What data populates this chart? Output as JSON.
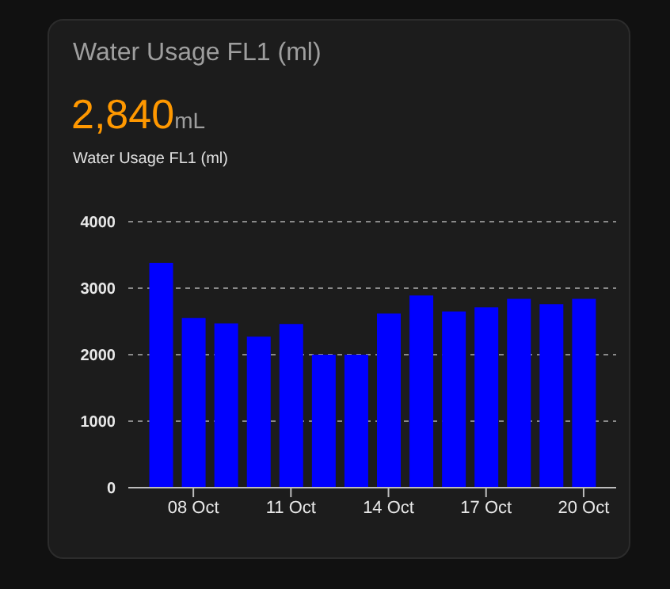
{
  "chart_data": {
    "type": "bar",
    "title": "Water Usage FL1 (ml)",
    "annotations": [
      "2,840",
      "mL"
    ],
    "subtitle": "Water Usage FL1 (ml)",
    "x": [
      "--10-07",
      "--10-08",
      "--10-09",
      "--10-10",
      "--10-11",
      "--10-12",
      "--10-13",
      "--10-14",
      "--10-15",
      "--10-16",
      "--10-17",
      "--10-18",
      "--10-19",
      "--10-20"
    ],
    "values": [
      3380,
      2550,
      2470,
      2270,
      2460,
      2000,
      2000,
      2620,
      2890,
      2650,
      2710,
      2840,
      2760,
      2840
    ],
    "color": "#0000ff",
    "xlim": [
      "--10-06",
      "--10-21"
    ],
    "xticks": [
      {
        "value": "--10-08",
        "label": "08 Oct"
      },
      {
        "value": "--10-11",
        "label": "11 Oct"
      },
      {
        "value": "--10-14",
        "label": "14 Oct"
      },
      {
        "value": "--10-17",
        "label": "17 Oct"
      },
      {
        "value": "--10-20",
        "label": "20 Oct"
      }
    ],
    "ylim": [
      0,
      4000
    ],
    "yticks": [
      0,
      1000,
      2000,
      3000,
      4000
    ],
    "grid": "y",
    "legend": false
  }
}
